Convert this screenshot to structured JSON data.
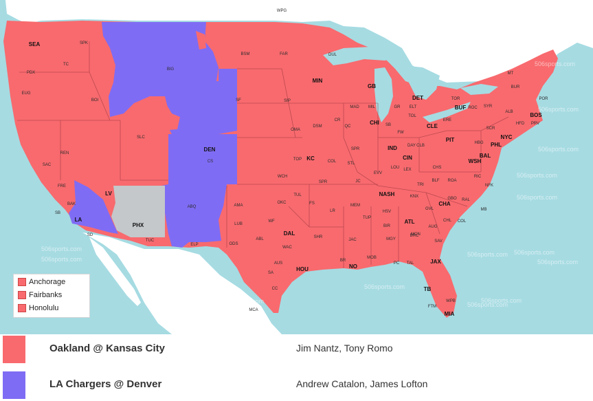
{
  "colors": {
    "water": "#a6dbe2",
    "land": "#ffffff",
    "cbs_red": "#f86a6e",
    "cbs_blue": "#7f6cf4",
    "no_game": "#c4c8ca",
    "border": "#8b2e36"
  },
  "map": {
    "watermark": "506sports.com",
    "labels": {
      "WPG": "WPG",
      "SEA": "SEA",
      "SPK": "SPK",
      "PDX": "PDX",
      "TC": "TC",
      "EUG": "EUG",
      "BOI": "BOI",
      "BIG": "BIG",
      "BSM": "BSM",
      "FAR": "FAR",
      "DUL": "DUL",
      "MIN": "MIN",
      "GB": "GB",
      "MAD": "MAD",
      "MIL": "MIL",
      "GR": "GR",
      "ELT": "ELT",
      "DET": "DET",
      "TOR": "TOR",
      "BUF": "BUF",
      "ROC": "ROC",
      "SYR": "SYR",
      "ALB": "ALB",
      "BUR": "BUR",
      "POR": "POR",
      "MT": "MT",
      "BOS": "BOS",
      "HFD": "HFD",
      "PRV": "PRV",
      "NYC": "NYC",
      "PHL": "PHL",
      "HBG": "HBG",
      "ERE": "ERE",
      "SCR": "SCR",
      "CLE": "CLE",
      "TOL": "TOL",
      "FW": "FW",
      "CHI": "CHI",
      "SB": "SB",
      "QC": "QC",
      "PIT": "PIT",
      "SF": "SF",
      "SIP": "SIP",
      "OMA": "OMA",
      "DSM": "DSM",
      "CR": "CR",
      "SPR": "SPR",
      "STL": "STL",
      "KC": "KC",
      "TOP": "TOP",
      "COL": "COL",
      "DEN": "DEN",
      "CS": "CS",
      "SLC": "SLC",
      "REN": "REN",
      "SAC": "SAC",
      "FRE": "FRE",
      "BAK": "BAK",
      "SB2": "SB",
      "LA": "LA",
      "SD": "SD",
      "LV": "LV",
      "PHX": "PHX",
      "TUC": "TUC",
      "ABQ": "ABQ",
      "ELP": "ELP",
      "AMA": "AMA",
      "LUB": "LUB",
      "ODS": "ODS",
      "ABL": "ABL",
      "WF": "WF",
      "OKC": "OKC",
      "TUL": "TUL",
      "FS": "FS",
      "LR": "LR",
      "WCH": "WCH",
      "SPR2": "SPR",
      "JC": "JC",
      "DAL": "DAL",
      "WAC": "WAC",
      "AUS": "AUS",
      "SA": "SA",
      "HOU": "HOU",
      "SHR": "SHR",
      "BR": "BR",
      "NO": "NO",
      "MOB": "MOB",
      "JAC": "JAC",
      "MEM": "MEM",
      "TUP": "TUP",
      "BIR": "BIR",
      "ATL": "ATL",
      "MGY": "MGY",
      "MCN": "MCN",
      "HSV": "HSV",
      "NASH": "NASH",
      "KNX": "KNX",
      "CHA": "CHA",
      "GVL": "GVL",
      "CHL": "CHL",
      "RAL": "RAL",
      "GBO": "GBO",
      "AUG": "AUG",
      "COL2": "COL",
      "SAV": "SAV",
      "JAX": "JAX",
      "TLH": "TAL",
      "PC": "PC",
      "TB": "TB",
      "FTM": "FTM",
      "WPB": "WPB",
      "MIA": "MIA",
      "EVV": "EVV",
      "IND": "IND",
      "CIN": "CIN",
      "DAY": "DAY",
      "LEX": "LEX",
      "LOU": "LOU",
      "CHS": "CHS",
      "BLF": "BLF",
      "ROA": "ROA",
      "RIC": "RIC",
      "NFK": "NFK",
      "WSH": "WSH",
      "BAL": "BAL",
      "CLB": "CLB",
      "TRI": "TRI",
      "MB": "MB",
      "BRC": "BRC",
      "MCA": "MCA",
      "CC": "CC"
    }
  },
  "legend": {
    "items": [
      "Anchorage",
      "Fairbanks",
      "Honolulu"
    ]
  },
  "games": [
    {
      "matchup": "Oakland @ Kansas City",
      "announcers": "Jim Nantz, Tony Romo",
      "color": "#f86a6e"
    },
    {
      "matchup": "LA Chargers @ Denver",
      "announcers": "Andrew Catalon, James Lofton",
      "color": "#7f6cf4"
    }
  ]
}
